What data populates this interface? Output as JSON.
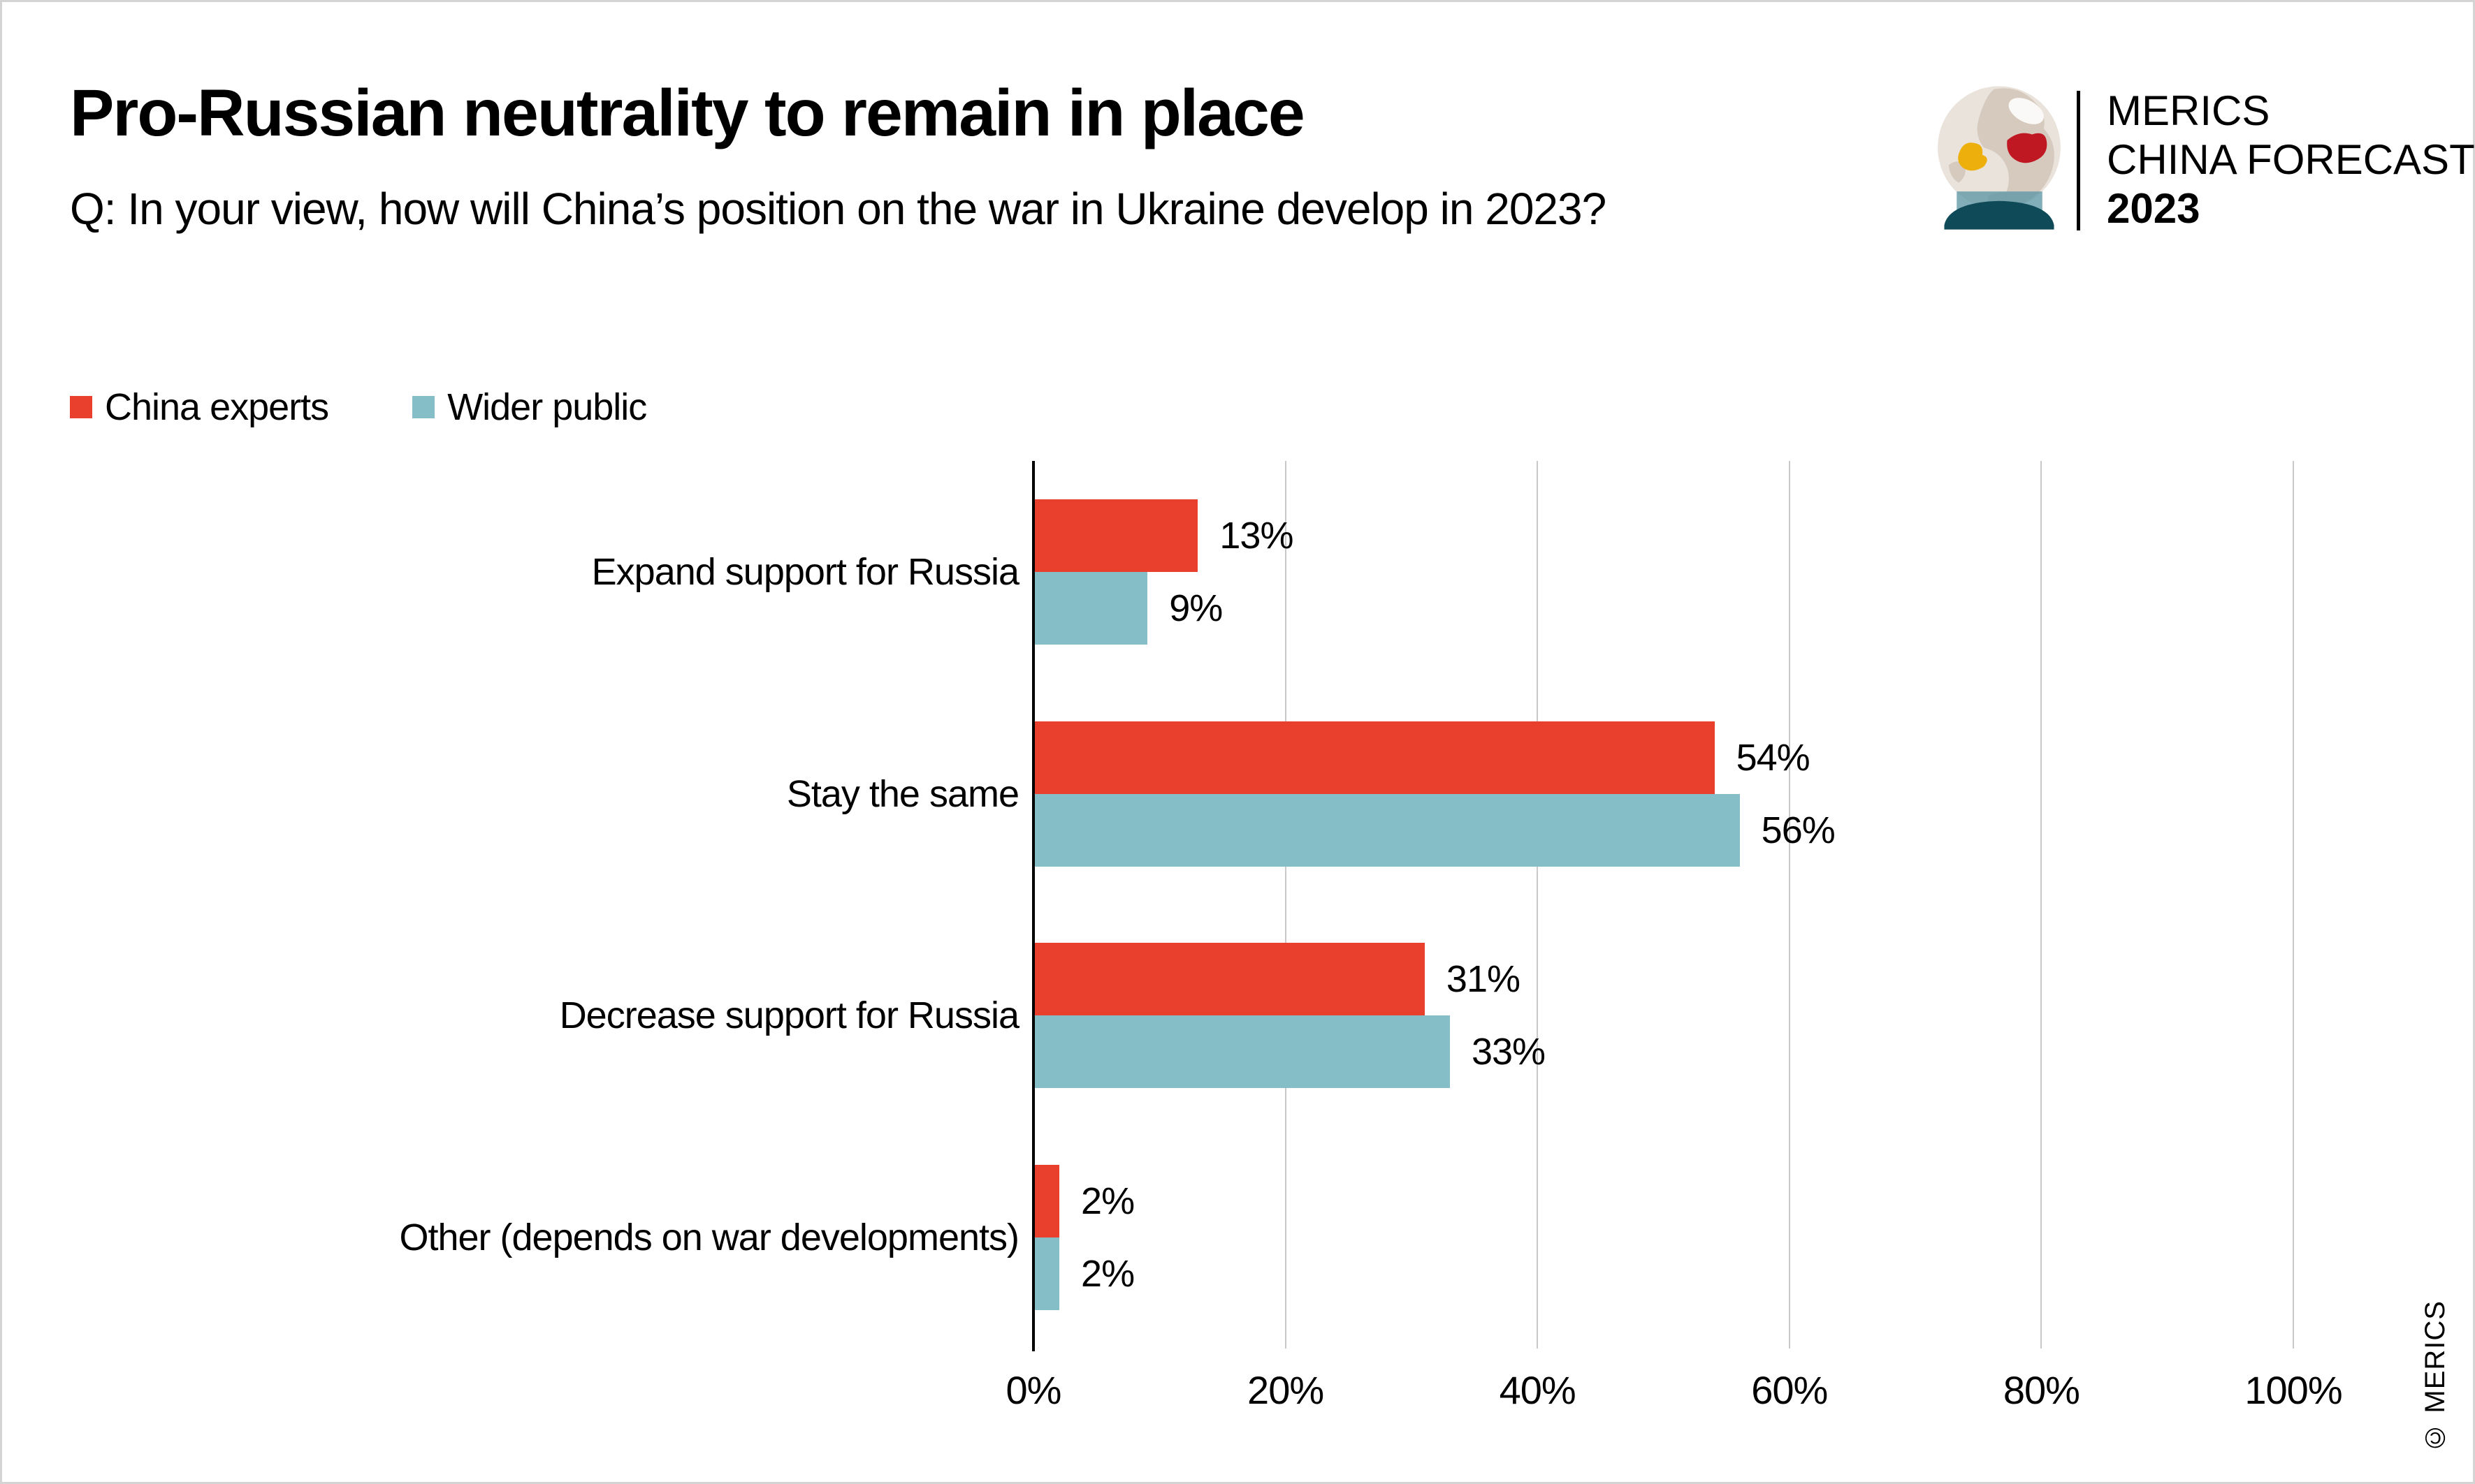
{
  "header": {
    "title": "Pro-Russian neutrality to remain in place",
    "subtitle": "Q: In your view, how will China’s position on the war in Ukraine develop in 2023?"
  },
  "logo": {
    "line1": "MERICS",
    "line2": "CHINA FORECAST",
    "line3": "2023"
  },
  "chart_data": {
    "type": "bar",
    "orientation": "horizontal",
    "title": "Pro-Russian neutrality to remain in place",
    "categories": [
      "Expand support for Russia",
      "Stay the same",
      "Decrease support for Russia",
      "Other (depends on war developments)"
    ],
    "series": [
      {
        "name": "China experts",
        "color": "#E8402C",
        "values": [
          13,
          54,
          31,
          2
        ]
      },
      {
        "name": "Wider public",
        "color": "#85BEC6",
        "values": [
          9,
          56,
          33,
          2
        ]
      }
    ],
    "value_suffix": "%",
    "x_ticks": [
      "0%",
      "20%",
      "40%",
      "60%",
      "80%",
      "100%"
    ],
    "xlim": [
      0,
      100
    ],
    "grid": true,
    "legend_position": "top-left",
    "axis_color": "#000000",
    "gridline_color": "#c9c9c9"
  },
  "footer": {
    "credit": "© MERICS"
  }
}
